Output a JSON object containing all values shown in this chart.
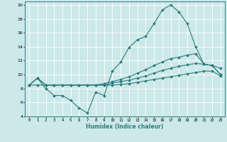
{
  "xlabel": "Humidex (Indice chaleur)",
  "xlim": [
    -0.5,
    23.5
  ],
  "ylim": [
    4,
    20.5
  ],
  "xticks": [
    0,
    1,
    2,
    3,
    4,
    5,
    6,
    7,
    8,
    9,
    10,
    11,
    12,
    13,
    14,
    15,
    16,
    17,
    18,
    19,
    20,
    21,
    22,
    23
  ],
  "yticks": [
    4,
    6,
    8,
    10,
    12,
    14,
    16,
    18,
    20
  ],
  "bg_color": "#cce8e8",
  "line_color": "#2e7d7d",
  "grid_color": "#ffffff",
  "line1_x": [
    0,
    1,
    2,
    3,
    4,
    5,
    6,
    7,
    8,
    9,
    10,
    11,
    12,
    13,
    14,
    15,
    16,
    17,
    18,
    19,
    20,
    21,
    22,
    23
  ],
  "line1_y": [
    8.5,
    9.5,
    8.0,
    7.0,
    7.0,
    6.3,
    5.2,
    4.5,
    7.5,
    7.0,
    10.5,
    11.8,
    13.9,
    15.0,
    15.5,
    17.3,
    19.3,
    20.0,
    19.0,
    17.3,
    14.0,
    11.5,
    11.3,
    10.9
  ],
  "line2_x": [
    0,
    1,
    2,
    3,
    4,
    5,
    6,
    7,
    8,
    9,
    10,
    11,
    12,
    13,
    14,
    15,
    16,
    17,
    18,
    19,
    20,
    21,
    22,
    23
  ],
  "line2_y": [
    8.5,
    9.5,
    8.5,
    8.5,
    8.5,
    8.5,
    8.5,
    8.5,
    8.5,
    8.7,
    9.0,
    9.3,
    9.7,
    10.2,
    10.7,
    11.3,
    11.8,
    12.3,
    12.5,
    12.8,
    13.0,
    11.5,
    11.3,
    10.0
  ],
  "line3_x": [
    0,
    1,
    2,
    3,
    4,
    5,
    6,
    7,
    8,
    9,
    10,
    11,
    12,
    13,
    14,
    15,
    16,
    17,
    18,
    19,
    20,
    21,
    22,
    23
  ],
  "line3_y": [
    8.5,
    9.5,
    8.5,
    8.5,
    8.5,
    8.5,
    8.5,
    8.5,
    8.5,
    8.5,
    8.8,
    9.0,
    9.2,
    9.5,
    9.8,
    10.2,
    10.6,
    10.9,
    11.2,
    11.4,
    11.6,
    11.5,
    11.3,
    10.0
  ],
  "line4_x": [
    0,
    1,
    2,
    3,
    4,
    5,
    6,
    7,
    8,
    9,
    10,
    11,
    12,
    13,
    14,
    15,
    16,
    17,
    18,
    19,
    20,
    21,
    22,
    23
  ],
  "line4_y": [
    8.5,
    8.5,
    8.5,
    8.5,
    8.5,
    8.5,
    8.5,
    8.5,
    8.5,
    8.5,
    8.5,
    8.6,
    8.7,
    8.9,
    9.1,
    9.3,
    9.5,
    9.7,
    9.9,
    10.1,
    10.3,
    10.5,
    10.5,
    9.8
  ]
}
